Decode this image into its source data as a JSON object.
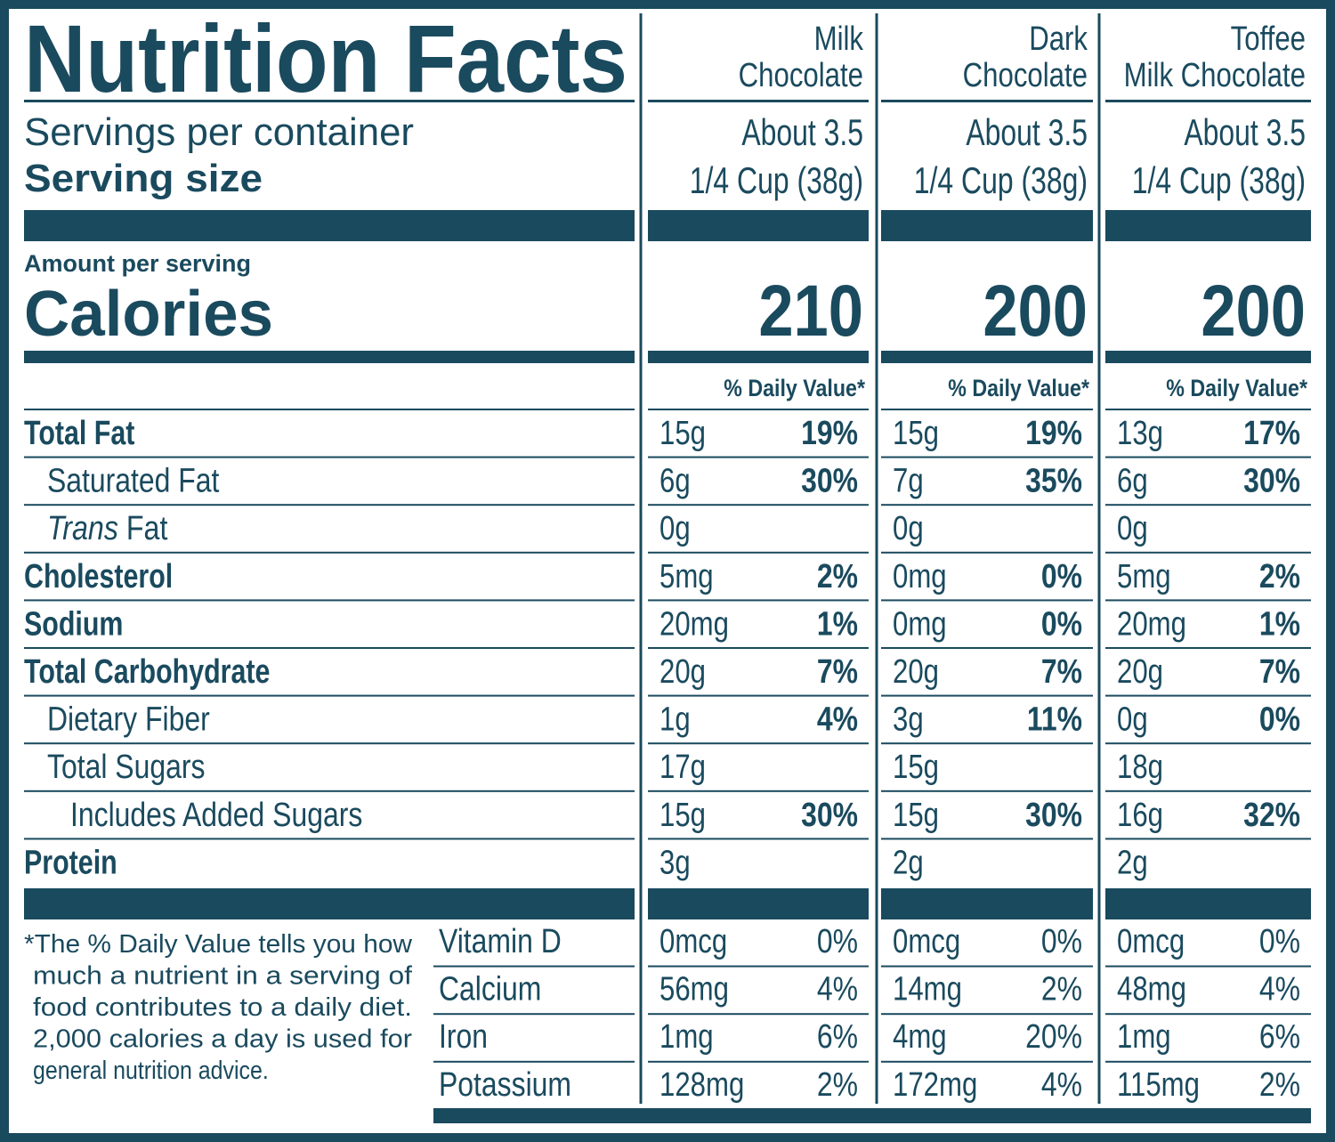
{
  "header": {
    "title": "Nutrition Facts",
    "servings_label": "Servings per container",
    "serving_size_label": "Serving size",
    "amount_label": "Amount per serving",
    "calories_label": "Calories",
    "daily_value_label": "% Daily Value*"
  },
  "products": [
    {
      "name": [
        "Milk",
        "Chocolate"
      ],
      "servings": "About 3.5",
      "serving_size": "1/4 Cup (38g)",
      "calories": 210
    },
    {
      "name": [
        "Dark",
        "Chocolate"
      ],
      "servings": "About 3.5",
      "serving_size": "1/4 Cup (38g)",
      "calories": 200
    },
    {
      "name": [
        "Toffee",
        "Milk Chocolate"
      ],
      "servings": "About 3.5",
      "serving_size": "1/4 Cup (38g)",
      "calories": 200
    }
  ],
  "nutrients": [
    {
      "label": "Total Fat",
      "amounts": [
        "15g",
        "15g",
        "13g"
      ],
      "daily_values": [
        "19%",
        "19%",
        "17%"
      ]
    },
    {
      "label": "Saturated Fat",
      "amounts": [
        "6g",
        "7g",
        "6g"
      ],
      "daily_values": [
        "30%",
        "35%",
        "30%"
      ]
    },
    {
      "label": "Trans Fat",
      "amounts": [
        "0g",
        "0g",
        "0g"
      ]
    },
    {
      "label": "Cholesterol",
      "amounts": [
        "5mg",
        "0mg",
        "5mg"
      ],
      "daily_values": [
        "2%",
        "0%",
        "2%"
      ]
    },
    {
      "label": "Sodium",
      "amounts": [
        "20mg",
        "0mg",
        "20mg"
      ],
      "daily_values": [
        "1%",
        "0%",
        "1%"
      ]
    },
    {
      "label": "Total Carbohydrate",
      "amounts": [
        "20g",
        "20g",
        "20g"
      ],
      "daily_values": [
        "7%",
        "7%",
        "7%"
      ]
    },
    {
      "label": "Dietary Fiber",
      "amounts": [
        "1g",
        "3g",
        "0g"
      ],
      "daily_values": [
        "4%",
        "11%",
        "0%"
      ]
    },
    {
      "label": "Total Sugars",
      "amounts": [
        "17g",
        "15g",
        "18g"
      ]
    },
    {
      "label": "Includes Added Sugars",
      "amounts": [
        "15g",
        "15g",
        "16g"
      ],
      "daily_values": [
        "30%",
        "30%",
        "32%"
      ]
    },
    {
      "label": "Protein",
      "amounts": [
        "3g",
        "2g",
        "2g"
      ]
    }
  ],
  "vitamins": [
    {
      "label": "Vitamin D",
      "amounts": [
        "0mcg",
        "0mcg",
        "0mcg"
      ],
      "daily_values": [
        "0%",
        "0%",
        "0%"
      ]
    },
    {
      "label": "Calcium",
      "amounts": [
        "56mg",
        "14mg",
        "48mg"
      ],
      "daily_values": [
        "4%",
        "2%",
        "4%"
      ]
    },
    {
      "label": "Iron",
      "amounts": [
        "1mg",
        "4mg",
        "1mg"
      ],
      "daily_values": [
        "6%",
        "20%",
        "6%"
      ]
    },
    {
      "label": "Potassium",
      "amounts": [
        "128mg",
        "172mg",
        "115mg"
      ],
      "daily_values": [
        "2%",
        "4%",
        "2%"
      ]
    }
  ],
  "footnote": [
    "*The % Daily Value tells you how",
    "much a nutrient in a serving of",
    "food contributes to a daily diet.",
    "2,000 calories a day is used for",
    "general nutrition advice."
  ]
}
